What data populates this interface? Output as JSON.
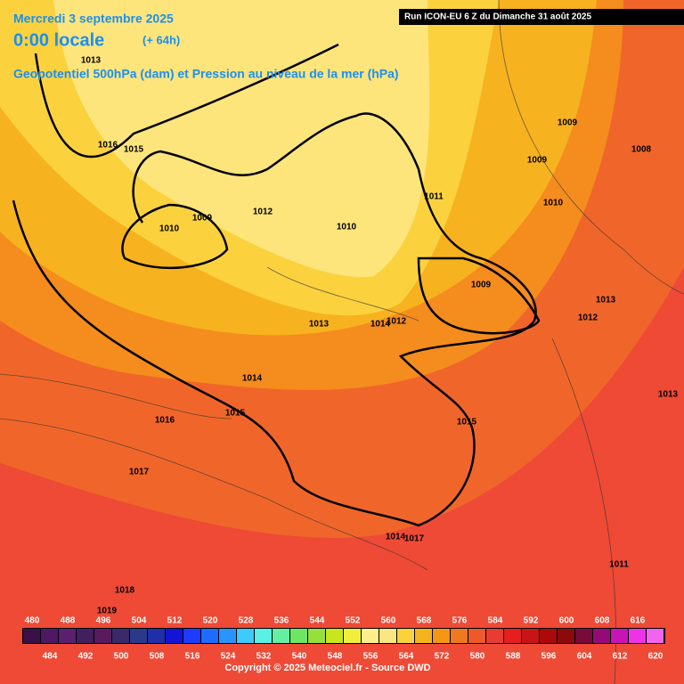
{
  "header": {
    "date": "Mercredi 3 septembre 2025",
    "time": "0:00 locale",
    "lead": "(+ 64h)",
    "field": "Geopotentiel 500hPa (dam) et Pression au niveau de la mer (hPa)",
    "run": "Run ICON-EU 6 Z du Dimanche 31 août 2025"
  },
  "isobar_labels": [
    "1013",
    "1016",
    "1015",
    "1009",
    "1010",
    "1012",
    "1010",
    "1011",
    "1009",
    "1009",
    "1008",
    "1010",
    "1009",
    "1013",
    "1012",
    "1013",
    "1014",
    "1012",
    "1014",
    "1016",
    "1015",
    "1015",
    "1017",
    "1013",
    "1014",
    "1017",
    "1011",
    "1018",
    "1019"
  ],
  "legend": {
    "labels": [
      480,
      484,
      488,
      492,
      496,
      500,
      504,
      508,
      512,
      516,
      520,
      524,
      528,
      532,
      536,
      540,
      544,
      548,
      552,
      556,
      560,
      564,
      568,
      572,
      576,
      580,
      584,
      588,
      592,
      596,
      600,
      604,
      608,
      612,
      616,
      620
    ],
    "colors": [
      "#3a0f4a",
      "#4e1863",
      "#5a1f6e",
      "#42205e",
      "#5a1a5e",
      "#3a2a6a",
      "#2a3a8a",
      "#1f2fa8",
      "#1414d6",
      "#1e3cff",
      "#1e6cff",
      "#2894ff",
      "#3ccaff",
      "#5af0e6",
      "#64f0a0",
      "#6ee664",
      "#96e03c",
      "#c8e61e",
      "#f0f03c",
      "#fff08c",
      "#fae682",
      "#fad23c",
      "#f5b41e",
      "#f59614",
      "#f0781e",
      "#eb5a28",
      "#e63c32",
      "#e61e1e",
      "#c81414",
      "#aa0a0a",
      "#8c0a0a",
      "#780a3c",
      "#960a78",
      "#c814b4",
      "#ee32e6",
      "#f064f0"
    ]
  },
  "copyright": "Copyright © 2025 Meteociel.fr - Source DWD"
}
